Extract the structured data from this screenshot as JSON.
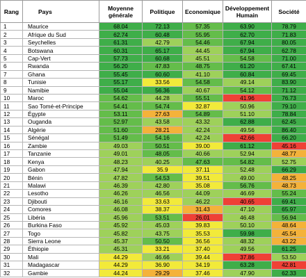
{
  "headers": {
    "rang": "Rang",
    "pays": "Pays",
    "moyenne": "Moyenne générale",
    "politique": "Politique",
    "economique": "Economique",
    "developpement": "Développement Humain",
    "societe": "Société"
  },
  "palette": {
    "g3": "#3fae49",
    "g2": "#64bd4a",
    "g1": "#9ed15a",
    "y": "#f2ea3a",
    "o": "#f4b23a",
    "r": "#ef4136"
  },
  "rows": [
    {
      "rank": "1",
      "country": "Maurice",
      "vals": [
        "68.04",
        "72.13",
        "57.35",
        "63.90",
        "78.79"
      ],
      "colors": [
        "g3",
        "g3",
        "g2",
        "g3",
        "g3"
      ]
    },
    {
      "rank": "2",
      "country": "Afrique du Sud",
      "vals": [
        "62.74",
        "60.48",
        "55.95",
        "62.70",
        "71.83"
      ],
      "colors": [
        "g3",
        "g3",
        "g2",
        "g3",
        "g3"
      ]
    },
    {
      "rank": "3",
      "country": "Seychelles",
      "vals": [
        "61.31",
        "42.79",
        "54.46",
        "67.94",
        "80.05"
      ],
      "colors": [
        "g3",
        "g1",
        "g2",
        "g3",
        "g3"
      ]
    },
    {
      "rank": "4",
      "country": "Botswana",
      "vals": [
        "60.31",
        "65.17",
        "44.45",
        "67.94",
        "62.78"
      ],
      "colors": [
        "g3",
        "g3",
        "g1",
        "g3",
        "g3"
      ]
    },
    {
      "rank": "5",
      "country": "Cap-Vert",
      "vals": [
        "57.73",
        "60.68",
        "45.51",
        "54.58",
        "71.00"
      ],
      "colors": [
        "g3",
        "g3",
        "g1",
        "g2",
        "g3"
      ]
    },
    {
      "rank": "6",
      "country": "Rwanda",
      "vals": [
        "56.20",
        "47.83",
        "48.75",
        "61.20",
        "67.41"
      ],
      "colors": [
        "g3",
        "g2",
        "g2",
        "g3",
        "g3"
      ]
    },
    {
      "rank": "7",
      "country": "Ghana",
      "vals": [
        "55.45",
        "60.60",
        "41.10",
        "60.84",
        "69.45"
      ],
      "colors": [
        "g3",
        "g3",
        "g1",
        "g3",
        "g3"
      ]
    },
    {
      "rank": "8",
      "country": "Tunisie",
      "vals": [
        "55.17",
        "33.56",
        "54.58",
        "49.14",
        "83.90"
      ],
      "colors": [
        "g3",
        "y",
        "g2",
        "g1",
        "g3"
      ]
    },
    {
      "rank": "9",
      "country": "Namibie",
      "vals": [
        "55.04",
        "56.36",
        "40.67",
        "54.12",
        "71.12"
      ],
      "colors": [
        "g3",
        "g3",
        "g1",
        "g2",
        "g3"
      ]
    },
    {
      "rank": "10",
      "country": "Maroc",
      "vals": [
        "54.62",
        "44.28",
        "55.51",
        "41.96",
        "76.73"
      ],
      "colors": [
        "g2",
        "g1",
        "g2",
        "r",
        "g3"
      ]
    },
    {
      "rank": "11",
      "country": "Sao Tomé-et-Principe",
      "vals": [
        "54.41",
        "54.74",
        "32.87",
        "50.96",
        "79.10"
      ],
      "colors": [
        "g2",
        "g2",
        "y",
        "g1",
        "g3"
      ]
    },
    {
      "rank": "12",
      "country": "Égypte",
      "vals": [
        "53.11",
        "27.63",
        "54.89",
        "51.10",
        "78.84"
      ],
      "colors": [
        "g2",
        "o",
        "g2",
        "g1",
        "g3"
      ]
    },
    {
      "rank": "13",
      "country": "Ouganda",
      "vals": [
        "52.97",
        "43.58",
        "43.32",
        "62.88",
        "62.45"
      ],
      "colors": [
        "g2",
        "g1",
        "g1",
        "g3",
        "g3"
      ]
    },
    {
      "rank": "14",
      "country": "Algérie",
      "vals": [
        "51.60",
        "28.21",
        "42.24",
        "49.56",
        "86.40"
      ],
      "colors": [
        "g2",
        "o",
        "g1",
        "g1",
        "g3"
      ]
    },
    {
      "rank": "15",
      "country": "Sénégal",
      "vals": [
        "51.49",
        "54.16",
        "42.24",
        "42.66",
        "66.20"
      ],
      "colors": [
        "g2",
        "g2",
        "g1",
        "r",
        "g3"
      ]
    },
    {
      "rank": "16",
      "country": "Zambie",
      "vals": [
        "49.03",
        "50.51",
        "39.00",
        "61.12",
        "45.16"
      ],
      "colors": [
        "g1",
        "g2",
        "y",
        "g3",
        "r"
      ]
    },
    {
      "rank": "17",
      "country": "Tanzanie",
      "vals": [
        "49.01",
        "48.05",
        "40.66",
        "52.94",
        "48.77"
      ],
      "colors": [
        "g1",
        "g2",
        "g1",
        "g1",
        "o"
      ]
    },
    {
      "rank": "18",
      "country": "Kenya",
      "vals": [
        "48.23",
        "40.25",
        "47.63",
        "54.82",
        "52.75"
      ],
      "colors": [
        "g1",
        "g1",
        "g2",
        "g2",
        "g1"
      ]
    },
    {
      "rank": "19",
      "country": "Gabon",
      "vals": [
        "47.94",
        "35.9",
        "37.11",
        "52.48",
        "66.29"
      ],
      "colors": [
        "g1",
        "y",
        "y",
        "g1",
        "g3"
      ]
    },
    {
      "rank": "20",
      "country": "Bénin",
      "vals": [
        "47.82",
        "54.53",
        "39.51",
        "49.00",
        "48.25"
      ],
      "colors": [
        "g1",
        "g2",
        "y",
        "g1",
        "o"
      ]
    },
    {
      "rank": "21",
      "country": "Malawi",
      "vals": [
        "46.39",
        "42.80",
        "35.08",
        "56.76",
        "48.73"
      ],
      "colors": [
        "g1",
        "g1",
        "y",
        "g2",
        "o"
      ]
    },
    {
      "rank": "22",
      "country": "Lesotho",
      "vals": [
        "46.26",
        "46.56",
        "44.09",
        "46.69",
        "55.24"
      ],
      "colors": [
        "g1",
        "g1",
        "g1",
        "g1",
        "g2"
      ]
    },
    {
      "rank": "23",
      "country": "Djibouti",
      "vals": [
        "46.16",
        "33.63",
        "46.22",
        "40.65",
        "69.41"
      ],
      "colors": [
        "g1",
        "y",
        "g1",
        "r",
        "g3"
      ]
    },
    {
      "rank": "24",
      "country": "Comores",
      "vals": [
        "46.08",
        "38.37",
        "31.43",
        "47.10",
        "65.97"
      ],
      "colors": [
        "g1",
        "y",
        "o",
        "g1",
        "g3"
      ]
    },
    {
      "rank": "25",
      "country": "Libéria",
      "vals": [
        "45.96",
        "53.51",
        "26.01",
        "46.48",
        "56.94"
      ],
      "colors": [
        "g1",
        "g2",
        "r",
        "g1",
        "g2"
      ]
    },
    {
      "rank": "26",
      "country": "Burkina Faso",
      "vals": [
        "45.92",
        "45.03",
        "39.83",
        "50.10",
        "48.64"
      ],
      "colors": [
        "g1",
        "g1",
        "y",
        "g1",
        "o"
      ]
    },
    {
      "rank": "27",
      "country": "Togo",
      "vals": [
        "45.82",
        "43.75",
        "35.53",
        "59.98",
        "45.54"
      ],
      "colors": [
        "g1",
        "g1",
        "y",
        "g3",
        "o"
      ]
    },
    {
      "rank": "28",
      "country": "Sierra Leone",
      "vals": [
        "45.37",
        "50.50",
        "36.56",
        "48.32",
        "43.22"
      ],
      "colors": [
        "g1",
        "g2",
        "y",
        "g1",
        "o"
      ]
    },
    {
      "rank": "29",
      "country": "Éthiopie",
      "vals": [
        "45.31",
        "33.21",
        "37.40",
        "49.56",
        "61.25"
      ],
      "colors": [
        "g1",
        "y",
        "y",
        "g1",
        "g3"
      ]
    },
    {
      "rank": "30",
      "country": "Mali",
      "vals": [
        "44.29",
        "46.66",
        "39.44",
        "37.86",
        "53.50"
      ],
      "colors": [
        "y",
        "g1",
        "y",
        "r",
        "g1"
      ]
    },
    {
      "rank": "31",
      "country": "Madagascar",
      "vals": [
        "44.29",
        "36.90",
        "34.19",
        "63.28",
        "42.81"
      ],
      "colors": [
        "y",
        "y",
        "y",
        "g3",
        "r"
      ]
    },
    {
      "rank": "32",
      "country": "Gambie",
      "vals": [
        "44.24",
        "29.29",
        "37.46",
        "47.90",
        "62.33"
      ],
      "colors": [
        "y",
        "o",
        "y",
        "g1",
        "g3"
      ]
    }
  ]
}
